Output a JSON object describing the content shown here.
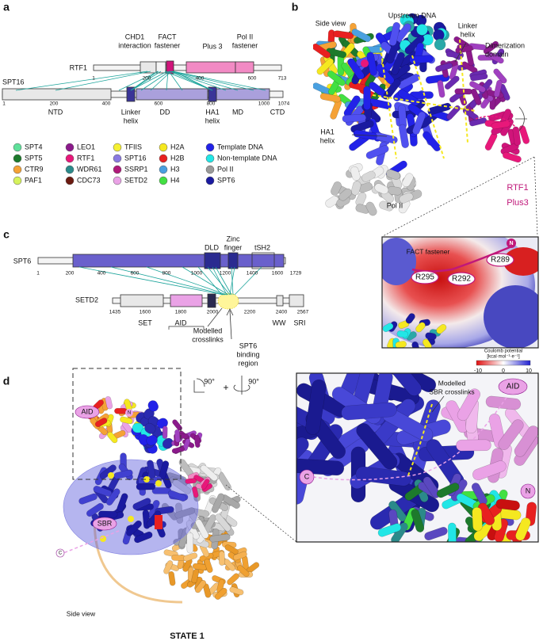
{
  "panel_a": {
    "label": "a",
    "rtf1": {
      "name": "RTF1",
      "ticks": [
        1,
        200,
        400,
        600,
        713
      ],
      "domains": [
        [
          "CHD1",
          "interaction"
        ],
        [
          "FACT",
          "fastener"
        ],
        [
          "Plus 3"
        ],
        [
          "Pol II",
          "fastener"
        ]
      ]
    },
    "spt16": {
      "name": "SPT16",
      "ticks": [
        1,
        200,
        400,
        600,
        800,
        1000,
        1074
      ],
      "domains": [
        [
          "NTD"
        ],
        [
          "Linker",
          "helix"
        ],
        [
          "DD"
        ],
        [
          "HA1",
          "helix"
        ],
        [
          "MD"
        ],
        [
          "CTD"
        ]
      ]
    }
  },
  "legend": [
    {
      "name": "SPT4",
      "color": "#5fe09a"
    },
    {
      "name": "SPT5",
      "color": "#1d7a2c"
    },
    {
      "name": "CTR9",
      "color": "#f5a236"
    },
    {
      "name": "PAF1",
      "color": "#d6f25c"
    },
    {
      "name": "LEO1",
      "color": "#8b1a8b"
    },
    {
      "name": "RTF1",
      "color": "#e8187a"
    },
    {
      "name": "WDR61",
      "color": "#2b8a8a"
    },
    {
      "name": "CDC73",
      "color": "#6b1a10"
    },
    {
      "name": "TFIIS",
      "color": "#f5f032"
    },
    {
      "name": "SPT16",
      "color": "#8a7ae0"
    },
    {
      "name": "SSRP1",
      "color": "#b01a7a"
    },
    {
      "name": "SETD2",
      "color": "#eaa2e6"
    },
    {
      "name": "H2A",
      "color": "#f5e820"
    },
    {
      "name": "H2B",
      "color": "#e82020"
    },
    {
      "name": "H3",
      "color": "#4aa0e0"
    },
    {
      "name": "H4",
      "color": "#42e042"
    },
    {
      "name": "Template DNA",
      "color": "#2222e8"
    },
    {
      "name": "Non-template DNA",
      "color": "#22e6e6"
    },
    {
      "name": "Pol II",
      "color": "#9a9a9a"
    },
    {
      "name": "SPT6",
      "color": "#1a1aa0"
    }
  ],
  "panel_b": {
    "label": "b",
    "view": "Side view",
    "upstream": "Upstream DNA",
    "linker": [
      "Linker",
      "helix"
    ],
    "dimer": [
      "Dimerization",
      "domain"
    ],
    "ha1": [
      "HA1",
      "helix"
    ],
    "pol": "Pol II",
    "plus3": [
      "RTF1",
      "Plus3"
    ],
    "inset": {
      "title": "FACT fastener",
      "n": "N",
      "residues": [
        "R289",
        "R295",
        "R292"
      ],
      "colorbar": {
        "title": "Coulomb potential",
        "unit": "[kcal·mol⁻¹·e⁻¹]",
        "ticks": [
          -10,
          0,
          10
        ]
      }
    }
  },
  "panel_c": {
    "label": "c",
    "spt6": {
      "name": "SPT6",
      "ticks": [
        1,
        200,
        400,
        600,
        800,
        1000,
        1200,
        1400,
        1600,
        1729
      ],
      "domains": [
        [
          "DLD"
        ],
        [
          "Zinc",
          "finger"
        ],
        [
          "tSH2"
        ]
      ]
    },
    "setd2": {
      "name": "SETD2",
      "ticks": [
        1435,
        1600,
        1800,
        2000,
        2200,
        2400,
        2567
      ],
      "domains": [
        [
          "SET"
        ],
        [
          "AID"
        ],
        [
          "WW"
        ],
        [
          "SRI"
        ]
      ]
    },
    "crosslinks": [
      "Modelled",
      "crosslinks"
    ],
    "binding": [
      "SPT6",
      "binding",
      "region"
    ]
  },
  "panel_d": {
    "label": "d",
    "rotations": [
      "90°",
      "+",
      "90°"
    ],
    "overview": {
      "aid": "AID",
      "n": "N",
      "sbr": "SBR",
      "c": "C",
      "view": "Side view"
    },
    "state": "STATE 1",
    "inset": {
      "crosslinks": [
        "Modelled",
        "SBR crosslinks"
      ],
      "aid": "AID",
      "c": "C",
      "n": "N"
    }
  }
}
